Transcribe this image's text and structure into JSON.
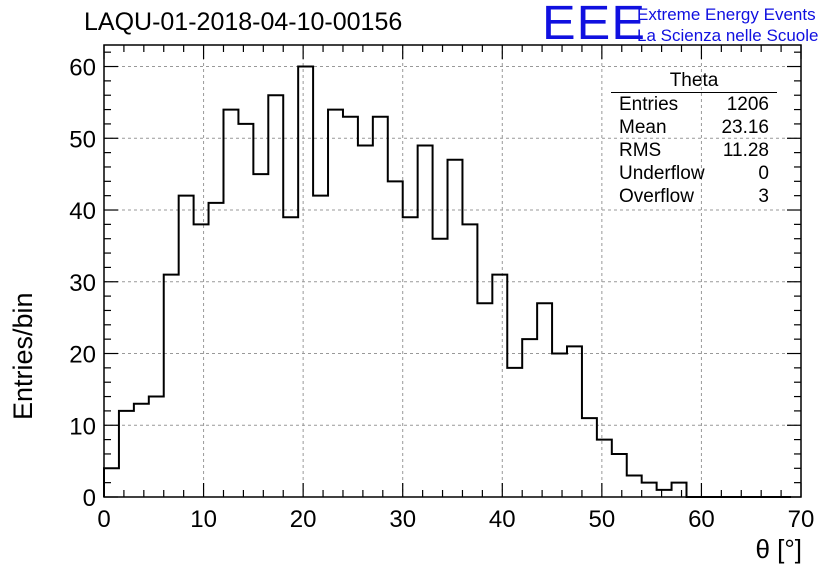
{
  "chart_data": {
    "type": "bar",
    "title": "LAQU-01-2018-04-10-00156",
    "xlabel": "θ [°]",
    "ylabel": "Entries/bin",
    "xlim": [
      0,
      70
    ],
    "ylim": [
      0,
      63
    ],
    "grid": true,
    "bin_width": 1.5,
    "bin_edges_start": 0,
    "values": [
      4,
      12,
      13,
      14,
      31,
      42,
      38,
      41,
      54,
      52,
      45,
      56,
      39,
      60,
      42,
      54,
      53,
      49,
      53,
      44,
      39,
      49,
      36,
      47,
      38,
      27,
      31,
      18,
      22,
      27,
      20,
      21,
      11,
      8,
      6,
      3,
      2,
      1,
      2,
      0,
      0,
      0,
      0,
      0,
      0,
      0
    ],
    "x_ticks": [
      "0",
      "10",
      "20",
      "30",
      "40",
      "50",
      "60",
      "70"
    ],
    "y_ticks": [
      "0",
      "10",
      "20",
      "30",
      "40",
      "50",
      "60"
    ]
  },
  "stats": {
    "title": "Theta",
    "rows": [
      {
        "label": "Entries",
        "value": "1206"
      },
      {
        "label": "Mean",
        "value": "23.16"
      },
      {
        "label": "RMS",
        "value": "11.28"
      },
      {
        "label": "Underflow",
        "value": "0"
      },
      {
        "label": "Overflow",
        "value": "3"
      }
    ]
  },
  "logo": {
    "mark": "EEE",
    "line1": "Extreme Energy Events",
    "line2": "La Scienza nelle Scuole",
    "color": "#1010e0"
  }
}
